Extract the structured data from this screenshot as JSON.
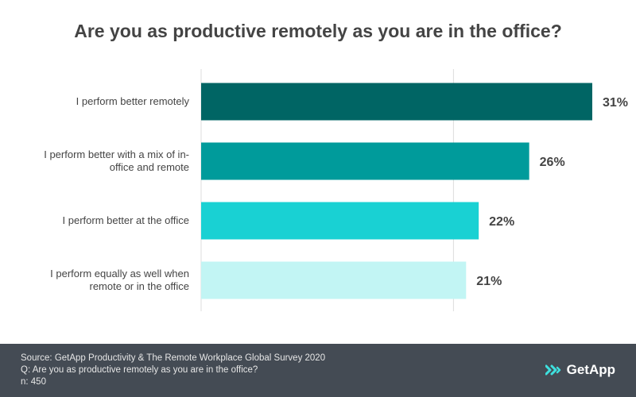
{
  "chart_data": {
    "type": "bar",
    "orientation": "horizontal",
    "title": "Are you as productive remotely as you are in the office?",
    "categories": [
      [
        "I perform better remotely"
      ],
      [
        "I perform better with a mix of in-",
        "office and remote"
      ],
      [
        "I perform better at the office"
      ],
      [
        "I perform equally as well when",
        "remote or in the office"
      ]
    ],
    "values": [
      31,
      26,
      22,
      21
    ],
    "value_labels": [
      "31%",
      "26%",
      "22%",
      "21%"
    ],
    "bar_colors": [
      "#006564",
      "#009b9b",
      "#19d1d3",
      "#c2f5f4"
    ],
    "xlim": [
      0,
      31
    ],
    "gridlines": [
      0,
      20
    ],
    "xlabel": "",
    "ylabel": ""
  },
  "footer": {
    "source": "Source: GetApp Productivity & The Remote Workplace Global Survey 2020",
    "question": "Q: Are you as productive remotely as you are in the office?",
    "sample": "n: 450",
    "brand": "GetApp"
  },
  "colors": {
    "footer_bg": "#444b54",
    "text": "#444444",
    "gridline": "#dddddd"
  }
}
